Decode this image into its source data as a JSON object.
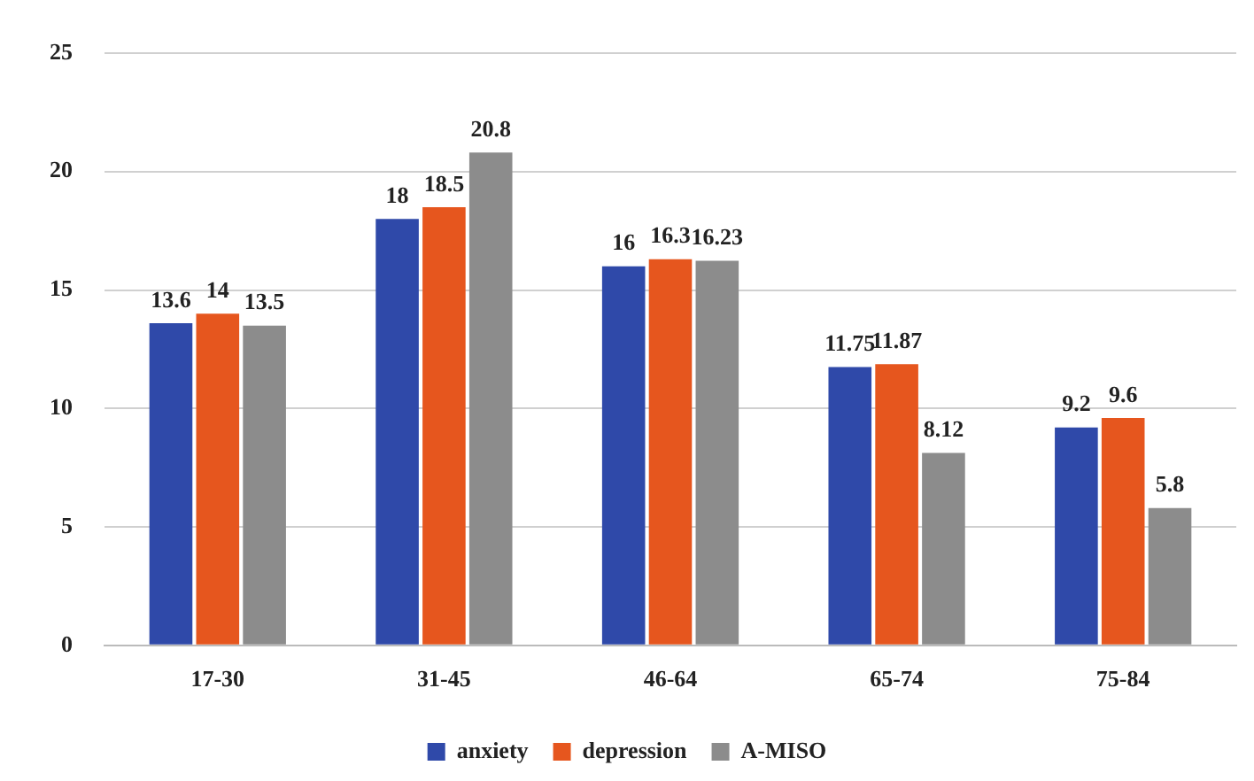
{
  "chart_data": {
    "type": "bar",
    "categories": [
      "17-30",
      "31-45",
      "46-64",
      "65-74",
      "75-84"
    ],
    "series": [
      {
        "name": "anxiety",
        "color": "#2f49a9",
        "values": [
          13.6,
          18,
          16,
          11.75,
          9.2
        ]
      },
      {
        "name": "depression",
        "color": "#e6561e",
        "values": [
          14,
          18.5,
          16.3,
          11.87,
          9.6
        ]
      },
      {
        "name": "A-MISO",
        "color": "#8c8c8c",
        "values": [
          13.5,
          20.8,
          16.23,
          8.12,
          5.8
        ]
      }
    ],
    "ylim": [
      0,
      25
    ],
    "yticks": [
      0,
      5,
      10,
      15,
      20,
      25
    ],
    "grid": "y",
    "legend": "bottom",
    "data_labels": true
  }
}
